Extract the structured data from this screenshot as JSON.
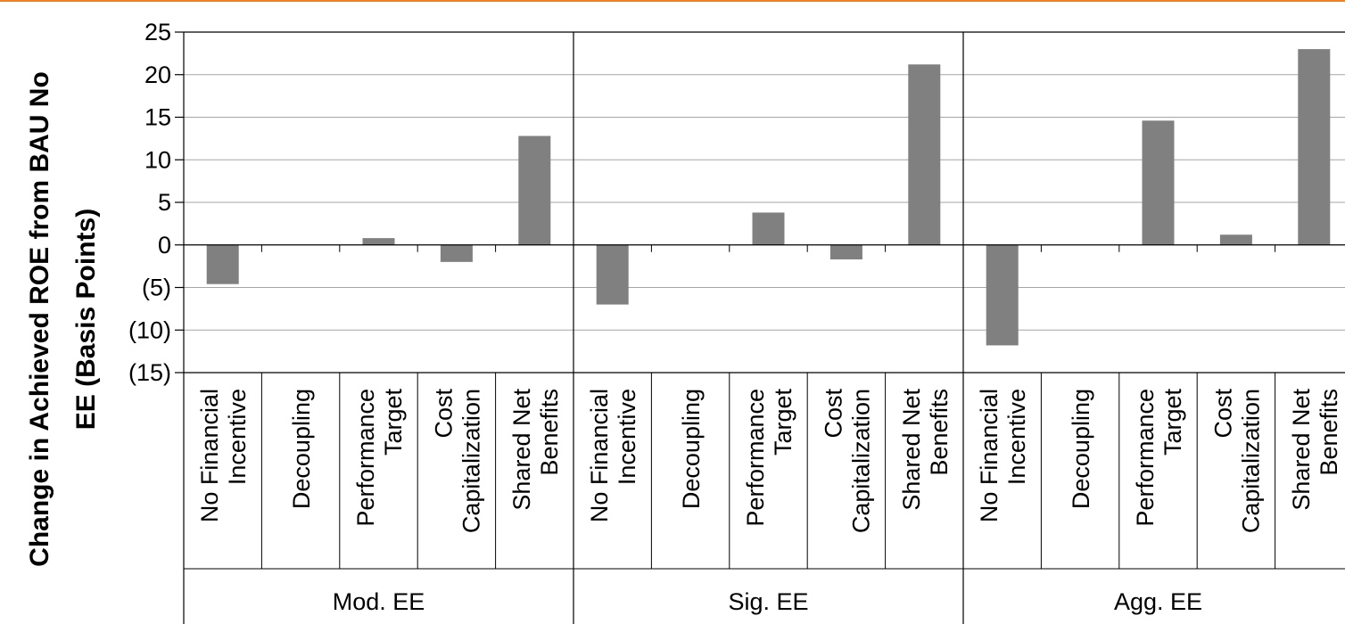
{
  "chart_data": {
    "type": "bar",
    "ylabel_lines": [
      "Change in Achieved ROE from BAU No",
      "EE (Basis Points)"
    ],
    "ylim": [
      -15,
      25
    ],
    "yticks": [
      {
        "value": 25,
        "label": "25"
      },
      {
        "value": 20,
        "label": "20"
      },
      {
        "value": 15,
        "label": "15"
      },
      {
        "value": 10,
        "label": "10"
      },
      {
        "value": 5,
        "label": "5"
      },
      {
        "value": 0,
        "label": "0"
      },
      {
        "value": -5,
        "label": "(5)"
      },
      {
        "value": -10,
        "label": "(10)"
      },
      {
        "value": -15,
        "label": "(15)"
      }
    ],
    "grid": true,
    "bar_color": "#808080",
    "accent_color": "#f08020",
    "groups": [
      {
        "name": "Mod. EE",
        "bars": [
          {
            "category": [
              "No Financial",
              "Incentive"
            ],
            "value": -4.6
          },
          {
            "category": [
              "Decoupling"
            ],
            "value": 0
          },
          {
            "category": [
              "Performance",
              "Target"
            ],
            "value": 0.8
          },
          {
            "category": [
              "Cost",
              "Capitalization"
            ],
            "value": -2.0
          },
          {
            "category": [
              "Shared Net",
              "Benefits"
            ],
            "value": 12.8
          }
        ]
      },
      {
        "name": "Sig. EE",
        "bars": [
          {
            "category": [
              "No Financial",
              "Incentive"
            ],
            "value": -7.0
          },
          {
            "category": [
              "Decoupling"
            ],
            "value": 0
          },
          {
            "category": [
              "Performance",
              "Target"
            ],
            "value": 3.8
          },
          {
            "category": [
              "Cost",
              "Capitalization"
            ],
            "value": -1.7
          },
          {
            "category": [
              "Shared Net",
              "Benefits"
            ],
            "value": 21.2
          }
        ]
      },
      {
        "name": "Agg. EE",
        "bars": [
          {
            "category": [
              "No Financial",
              "Incentive"
            ],
            "value": -11.8
          },
          {
            "category": [
              "Decoupling"
            ],
            "value": 0
          },
          {
            "category": [
              "Performance",
              "Target"
            ],
            "value": 14.6
          },
          {
            "category": [
              "Cost",
              "Capitalization"
            ],
            "value": 1.2
          },
          {
            "category": [
              "Shared Net",
              "Benefits"
            ],
            "value": 23.0
          }
        ]
      }
    ]
  }
}
